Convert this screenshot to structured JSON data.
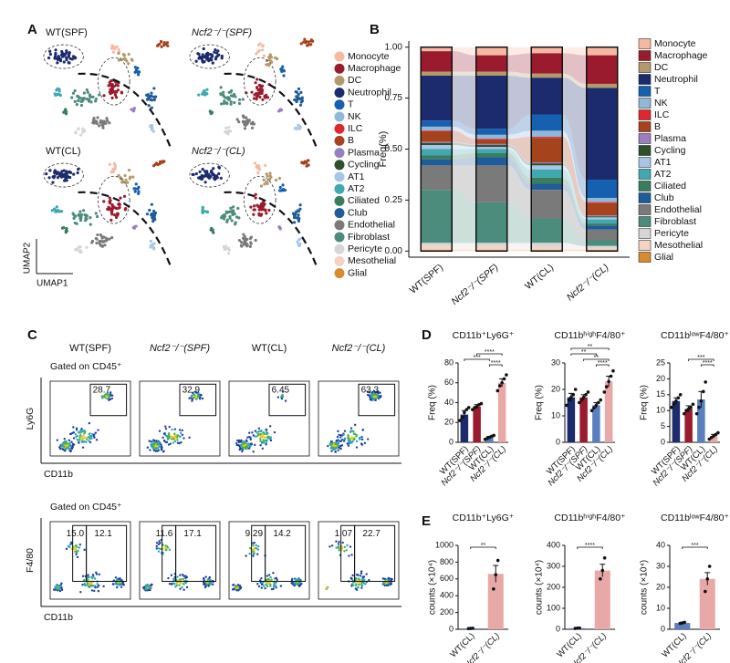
{
  "panel_labels": [
    "A",
    "B",
    "C",
    "D",
    "E"
  ],
  "umap": {
    "titles": [
      "WT(SPF)",
      "Ncf2⁻/⁻(SPF)",
      "WT(CL)",
      "Ncf2⁻/⁻(CL)"
    ],
    "x_label": "UMAP1",
    "y_label": "UMAP2"
  },
  "flow": {
    "groups": [
      "WT(SPF)",
      "Ncf2⁻/⁻(SPF)",
      "WT(CL)",
      "Ncf2⁻/⁻(CL)"
    ],
    "rows": [
      {
        "gate_label": "Gated on CD45⁺",
        "y_label": "Ly6G",
        "x_label": "CD11b",
        "gates": [
          [
            "28.7"
          ],
          [
            "32.9"
          ],
          [
            "6.45"
          ],
          [
            "63.3"
          ]
        ]
      },
      {
        "gate_label": "Gated on CD45⁺",
        "y_label": "F4/80",
        "x_label": "CD11b",
        "gates": [
          [
            "15.0",
            "12.1"
          ],
          [
            "11.6",
            "17.1"
          ],
          [
            "9.29",
            "14.2"
          ],
          [
            "1.07",
            "22.7"
          ]
        ]
      }
    ]
  },
  "chart_data": [
    {
      "type": "stacked_bar",
      "ylabel": "Freq(%)",
      "categories": [
        "WT(SPF)",
        "Ncf2⁻/⁻(SPF)",
        "WT(CL)",
        "Ncf2⁻/⁻(CL)"
      ],
      "ylim": [
        -0.03,
        1.03
      ],
      "yticks": [
        {
          "value": 0,
          "label": "0.00"
        },
        0.25,
        {
          "value": 0.5,
          "label": "0.50"
        },
        0.75,
        {
          "value": 1,
          "label": "1.00"
        }
      ],
      "series": [
        {
          "name": "Monocyte",
          "color": "#f5b9a2",
          "values": [
            0.02,
            0.04,
            0.03,
            0.04
          ]
        },
        {
          "name": "Macrophage",
          "color": "#9b1b2e",
          "values": [
            0.1,
            0.08,
            0.1,
            0.14
          ]
        },
        {
          "name": "DC",
          "color": "#b39a6a",
          "values": [
            0.02,
            0.02,
            0.02,
            0.02
          ]
        },
        {
          "name": "Neutrophil",
          "color": "#1c2a6e",
          "values": [
            0.22,
            0.26,
            0.18,
            0.45
          ]
        },
        {
          "name": "T",
          "color": "#1660b0",
          "values": [
            0.03,
            0.03,
            0.08,
            0.09
          ]
        },
        {
          "name": "NK",
          "color": "#8fb8d9",
          "values": [
            0.02,
            0.02,
            0.03,
            0.02
          ]
        },
        {
          "name": "ILC",
          "color": "#e0262e",
          "values": [
            0.005,
            0.005,
            0.005,
            0.005
          ]
        },
        {
          "name": "B",
          "color": "#a5431d",
          "values": [
            0.05,
            0.02,
            0.12,
            0.06
          ]
        },
        {
          "name": "Plasma",
          "color": "#9a7fbf",
          "values": [
            0.005,
            0.005,
            0.005,
            0.005
          ]
        },
        {
          "name": "Cycling",
          "color": "#2f4f2a",
          "values": [
            0.01,
            0.01,
            0.01,
            0.005
          ]
        },
        {
          "name": "AT1",
          "color": "#a7c5e6",
          "values": [
            0.02,
            0.01,
            0.02,
            0.01
          ]
        },
        {
          "name": "AT2",
          "color": "#3fa8b0",
          "values": [
            0.03,
            0.02,
            0.04,
            0.02
          ]
        },
        {
          "name": "Ciliated",
          "color": "#3a7d5c",
          "values": [
            0.02,
            0.02,
            0.03,
            0.01
          ]
        },
        {
          "name": "Club",
          "color": "#1f5c99",
          "values": [
            0.03,
            0.04,
            0.03,
            0.02
          ]
        },
        {
          "name": "Endothelial",
          "color": "#7a7a7a",
          "values": [
            0.12,
            0.18,
            0.14,
            0.05
          ]
        },
        {
          "name": "Fibroblast",
          "color": "#4c8c7c",
          "values": [
            0.26,
            0.2,
            0.12,
            0.03
          ]
        },
        {
          "name": "Pericyte",
          "color": "#d6d6d6",
          "values": [
            0.015,
            0.015,
            0.02,
            0.01
          ]
        },
        {
          "name": "Mesothelial",
          "color": "#f2d3c4",
          "values": [
            0.02,
            0.02,
            0.015,
            0.01
          ]
        },
        {
          "name": "Glial",
          "color": "#d98a2e",
          "values": [
            0.005,
            0.005,
            0.005,
            0.005
          ]
        }
      ]
    },
    {
      "type": "bar",
      "title": "CD11b⁺Ly6G⁺",
      "ylabel": "Freq (%)",
      "categories": [
        "WT(SPF)",
        "Ncf2⁻/⁻(SPF)",
        "WT(CL)",
        "Ncf2⁻/⁻(CL)"
      ],
      "colors": [
        "#1c2a6e",
        "#9b1b2e",
        "#5a7fc0",
        "#e8a8a8"
      ],
      "values": [
        28,
        36,
        5,
        60
      ],
      "errors": [
        4,
        2,
        1,
        4
      ],
      "points": [
        [
          22,
          25,
          30,
          33,
          35
        ],
        [
          33,
          35,
          36,
          38,
          39
        ],
        [
          3,
          4,
          5,
          6,
          7
        ],
        [
          52,
          57,
          60,
          64,
          68
        ]
      ],
      "ylim": [
        0,
        80
      ],
      "yticks": [
        0,
        20,
        40,
        60,
        80
      ],
      "significance": [
        {
          "text": "****",
          "between": [
            2,
            3
          ]
        },
        {
          "text": "***",
          "between": [
            0,
            2
          ]
        },
        {
          "text": "****",
          "between": [
            1,
            3
          ]
        }
      ]
    },
    {
      "type": "bar",
      "title": "CD11bʰⁱᵍʰF4/80⁺",
      "ylabel": "Freq (%)",
      "categories": [
        "WT(SPF)",
        "Ncf2⁻/⁻(SPF)",
        "WT(CL)",
        "Ncf2⁻/⁻(CL)"
      ],
      "colors": [
        "#1c2a6e",
        "#9b1b2e",
        "#5a7fc0",
        "#e8a8a8"
      ],
      "values": [
        17,
        17,
        14,
        23
      ],
      "errors": [
        1.5,
        1,
        1,
        2
      ],
      "points": [
        [
          14,
          16,
          17,
          18,
          20
        ],
        [
          15,
          16,
          17,
          18,
          19
        ],
        [
          12,
          13,
          14,
          15,
          16
        ],
        [
          19,
          21,
          23,
          25,
          27
        ]
      ],
      "ylim": [
        0,
        30
      ],
      "yticks": [
        0,
        10,
        20,
        30
      ],
      "significance": [
        {
          "text": "****",
          "between": [
            2,
            3
          ]
        },
        {
          "text": "**",
          "between": [
            1,
            3
          ]
        },
        {
          "text": "**",
          "between": [
            0,
            2
          ]
        },
        {
          "text": "**",
          "between": [
            0,
            3
          ]
        }
      ]
    },
    {
      "type": "bar",
      "title": "CD11bˡᵒʷF4/80⁺",
      "ylabel": "Freq (%)",
      "categories": [
        "WT(SPF)",
        "Ncf2⁻/⁻(SPF)",
        "WT(CL)",
        "Ncf2⁻/⁻(CL)"
      ],
      "colors": [
        "#1c2a6e",
        "#9b1b2e",
        "#5a7fc0",
        "#e8a8a8"
      ],
      "values": [
        13,
        10.5,
        13.5,
        2
      ],
      "errors": [
        1,
        1,
        2.5,
        0.5
      ],
      "points": [
        [
          11,
          12,
          13,
          14,
          15
        ],
        [
          9,
          10,
          10.5,
          11,
          12
        ],
        [
          9,
          11,
          13,
          16,
          19
        ],
        [
          1,
          1.5,
          2,
          2.5,
          3
        ]
      ],
      "ylim": [
        0,
        25
      ],
      "yticks": [
        0,
        5,
        10,
        15,
        20,
        25
      ],
      "significance": [
        {
          "text": "****",
          "between": [
            2,
            3
          ]
        },
        {
          "text": "***",
          "between": [
            1,
            3
          ]
        }
      ]
    },
    {
      "type": "bar",
      "title": "CD11b⁺Ly6G⁺",
      "ylabel": "counts (×10⁴)",
      "categories": [
        "WT(CL)",
        "Ncf2⁻/⁻(CL)"
      ],
      "colors": [
        "#5a7fc0",
        "#e8a8a8"
      ],
      "values": [
        10,
        660
      ],
      "errors": [
        5,
        100
      ],
      "points": [
        [
          8,
          10,
          12
        ],
        [
          480,
          650,
          820
        ]
      ],
      "ylim": [
        0,
        1000
      ],
      "yticks": [
        0,
        200,
        400,
        600,
        800,
        1000
      ],
      "significance": [
        {
          "text": "**",
          "between": [
            0,
            1
          ]
        }
      ]
    },
    {
      "type": "bar",
      "title": "CD11bʰⁱᵍʰF4/80⁺",
      "ylabel": "counts (×10⁴)",
      "categories": [
        "WT(CL)",
        "Ncf2⁻/⁻(CL)"
      ],
      "colors": [
        "#5a7fc0",
        "#e8a8a8"
      ],
      "values": [
        5,
        280
      ],
      "errors": [
        2,
        30
      ],
      "points": [
        [
          4,
          5,
          6
        ],
        [
          240,
          280,
          340
        ]
      ],
      "ylim": [
        0,
        400
      ],
      "yticks": [
        0,
        100,
        200,
        300,
        400
      ],
      "significance": [
        {
          "text": "****",
          "between": [
            0,
            1
          ]
        }
      ]
    },
    {
      "type": "bar",
      "title": "CD11bˡᵒʷF4/80⁺",
      "ylabel": "counts (×10⁴)",
      "categories": [
        "WT(CL)",
        "Ncf2⁻/⁻(CL)"
      ],
      "colors": [
        "#5a7fc0",
        "#e8a8a8"
      ],
      "values": [
        3,
        24
      ],
      "errors": [
        0.3,
        3
      ],
      "points": [
        [
          2.8,
          3,
          3.3
        ],
        [
          18,
          24,
          30
        ]
      ],
      "ylim": [
        0,
        40
      ],
      "yticks": [
        0,
        10,
        20,
        30,
        40
      ],
      "significance": [
        {
          "text": "***",
          "between": [
            0,
            1
          ]
        }
      ]
    }
  ]
}
